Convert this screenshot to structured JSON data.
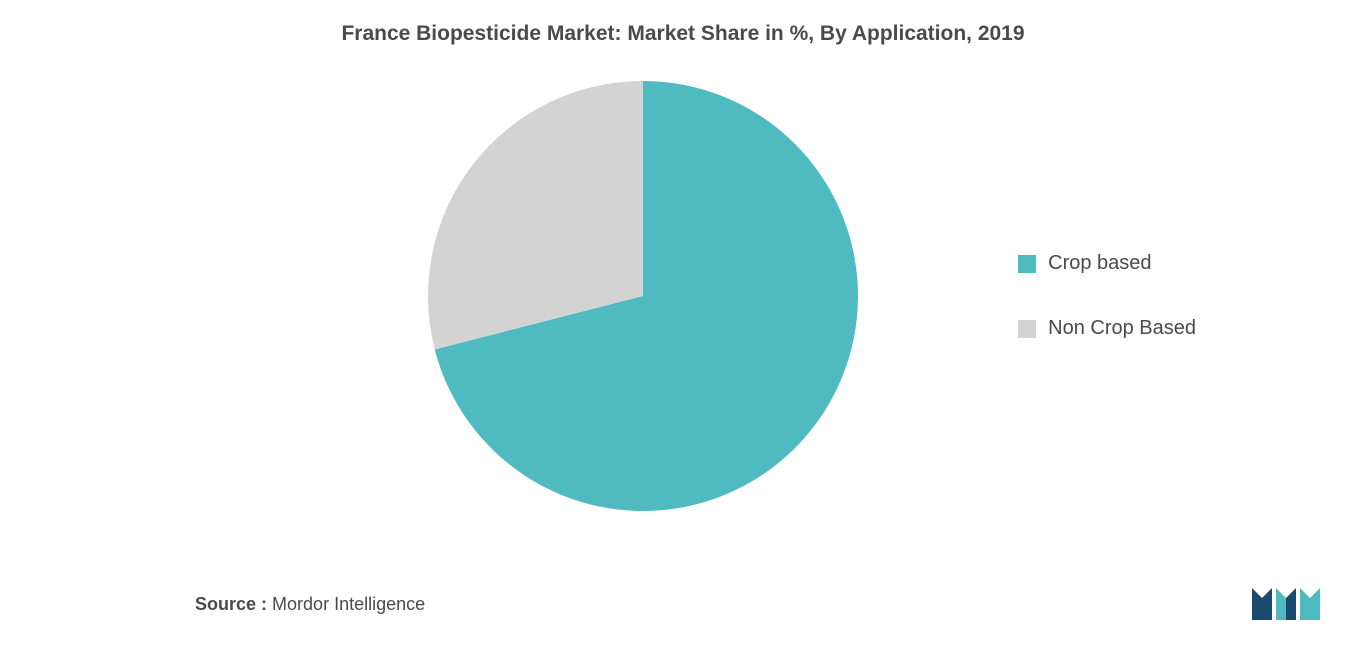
{
  "chart": {
    "type": "pie",
    "title": "France Biopesticide Market: Market Share in %, By Application, 2019",
    "title_fontsize": 21,
    "title_color": "#4a4a4a",
    "background_color": "#ffffff",
    "slices": [
      {
        "label": "Crop based",
        "value": 71,
        "color": "#4fbbc1"
      },
      {
        "label": "Non Crop Based",
        "value": 29,
        "color": "#d3d3d3"
      }
    ],
    "legend": {
      "position": "right",
      "fontsize": 20,
      "text_color": "#4a4a4a"
    },
    "radius": 210
  },
  "source": {
    "label": "Source :",
    "value": "Mordor Intelligence",
    "fontsize": 18,
    "color": "#4a4a4a"
  },
  "brand": {
    "name": "Mordor Intelligence Logo",
    "colors": [
      "#1a4a6e",
      "#4fbbc1"
    ]
  }
}
